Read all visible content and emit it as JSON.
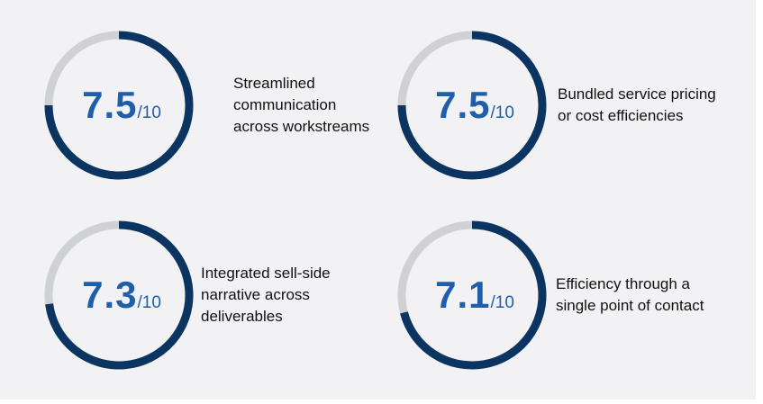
{
  "colors": {
    "track": "#d0d1d4",
    "progress": "#0b3560",
    "score_text": "#1f5ea8"
  },
  "chart_data": {
    "type": "radial-progress",
    "max": 10,
    "items": [
      {
        "value": 7.5,
        "display": "7.5",
        "denominator": "/10",
        "label_lines": [
          "Streamlined",
          "communication",
          "across workstreams"
        ]
      },
      {
        "value": 7.5,
        "display": "7.5",
        "denominator": "/10",
        "label_lines": [
          "Bundled service pricing",
          "or cost efficiencies"
        ]
      },
      {
        "value": 7.3,
        "display": "7.3",
        "denominator": "/10",
        "label_lines": [
          "Integrated sell-side",
          "narrative across",
          "deliverables"
        ]
      },
      {
        "value": 7.1,
        "display": "7.1",
        "denominator": "/10",
        "label_lines": [
          "Efficiency through a",
          "single point of contact"
        ]
      }
    ]
  }
}
